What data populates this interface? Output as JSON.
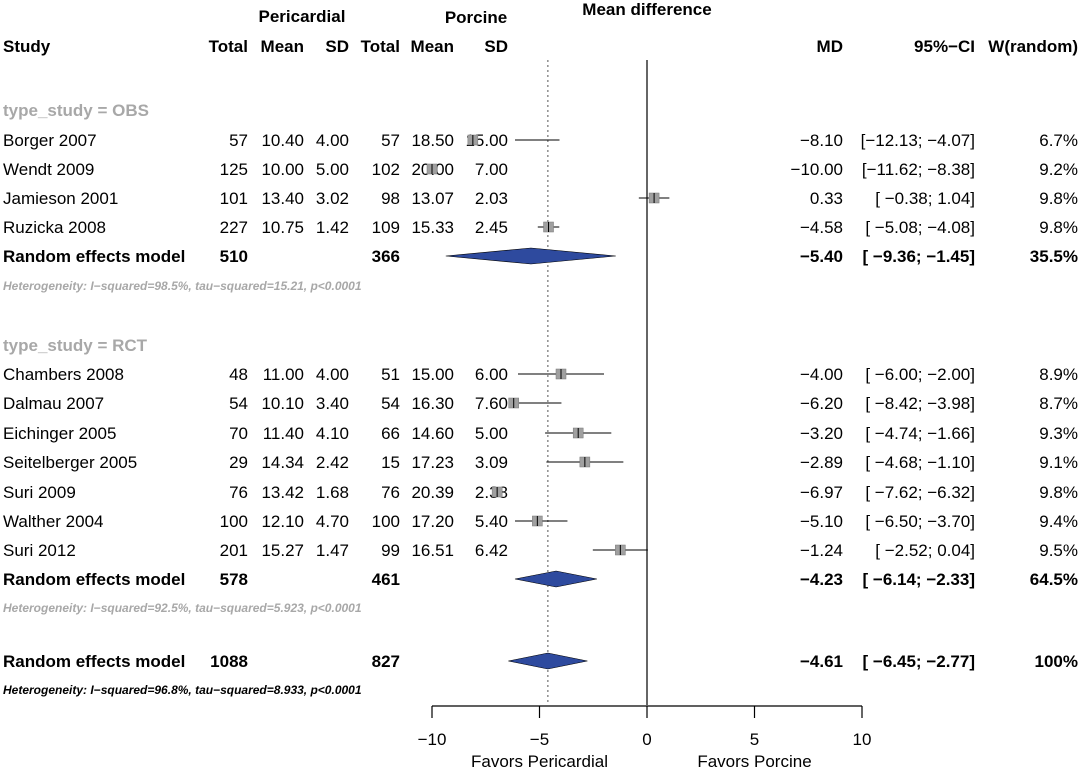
{
  "headers": {
    "group1": "Pericardial",
    "group2": "Porcine",
    "plot": "Mean difference",
    "study": "Study",
    "total1": "Total",
    "mean1": "Mean",
    "sd1": "SD",
    "total2": "Total",
    "mean2": "Mean",
    "sd2": "SD",
    "md": "MD",
    "ci": "95%−CI",
    "weight": "W(random)"
  },
  "subgroups": [
    {
      "label": "type_study = OBS",
      "studies": [
        {
          "name": "Borger 2007",
          "total1": "57",
          "mean1": "10.40",
          "sd1": "4.00",
          "total2": "57",
          "mean2": "18.50",
          "sd2": "15.00",
          "md_text": "−8.10",
          "ci_text": "[−12.13; −4.07]",
          "w_text": "6.7%",
          "md": -8.1,
          "lo": -12.13,
          "hi": -4.07
        },
        {
          "name": "Wendt 2009",
          "total1": "125",
          "mean1": "10.00",
          "sd1": "5.00",
          "total2": "102",
          "mean2": "20.00",
          "sd2": "7.00",
          "md_text": "−10.00",
          "ci_text": "[−11.62; −8.38]",
          "w_text": "9.2%",
          "md": -10.0,
          "lo": -11.62,
          "hi": -8.38
        },
        {
          "name": "Jamieson  2001",
          "total1": "101",
          "mean1": "13.40",
          "sd1": "3.02",
          "total2": "98",
          "mean2": "13.07",
          "sd2": "2.03",
          "md_text": "0.33",
          "ci_text": "[ −0.38;  1.04]",
          "w_text": "9.8%",
          "md": 0.33,
          "lo": -0.38,
          "hi": 1.04
        },
        {
          "name": "Ruzicka 2008",
          "total1": "227",
          "mean1": "10.75",
          "sd1": "1.42",
          "total2": "109",
          "mean2": "15.33",
          "sd2": "2.45",
          "md_text": "−4.58",
          "ci_text": "[ −5.08; −4.08]",
          "w_text": "9.8%",
          "md": -4.58,
          "lo": -5.08,
          "hi": -4.08
        }
      ],
      "pooled": {
        "label": "Random effects model",
        "total1": "510",
        "total2": "366",
        "md_text": "−5.40",
        "ci_text": "[ −9.36; −1.45]",
        "w_text": "35.5%",
        "md": -5.4,
        "lo": -9.36,
        "hi": -1.45
      },
      "heterogeneity": "Heterogeneity: I−squared=98.5%, tau−squared=15.21, p<0.0001"
    },
    {
      "label": "type_study = RCT",
      "studies": [
        {
          "name": "Chambers 2008",
          "total1": "48",
          "mean1": "11.00",
          "sd1": "4.00",
          "total2": "51",
          "mean2": "15.00",
          "sd2": "6.00",
          "md_text": "−4.00",
          "ci_text": "[ −6.00; −2.00]",
          "w_text": "8.9%",
          "md": -4.0,
          "lo": -6.0,
          "hi": -2.0
        },
        {
          "name": "Dalmau 2007",
          "total1": "54",
          "mean1": "10.10",
          "sd1": "3.40",
          "total2": "54",
          "mean2": "16.30",
          "sd2": "7.60",
          "md_text": "−6.20",
          "ci_text": "[ −8.42; −3.98]",
          "w_text": "8.7%",
          "md": -6.2,
          "lo": -8.42,
          "hi": -3.98
        },
        {
          "name": "Eichinger 2005",
          "total1": "70",
          "mean1": "11.40",
          "sd1": "4.10",
          "total2": "66",
          "mean2": "14.60",
          "sd2": "5.00",
          "md_text": "−3.20",
          "ci_text": "[ −4.74; −1.66]",
          "w_text": "9.3%",
          "md": -3.2,
          "lo": -4.74,
          "hi": -1.66
        },
        {
          "name": "Seitelberger 2005",
          "total1": "29",
          "mean1": "14.34",
          "sd1": "2.42",
          "total2": "15",
          "mean2": "17.23",
          "sd2": "3.09",
          "md_text": "−2.89",
          "ci_text": "[ −4.68; −1.10]",
          "w_text": "9.1%",
          "md": -2.89,
          "lo": -4.68,
          "hi": -1.1
        },
        {
          "name": "Suri 2009",
          "total1": "76",
          "mean1": "13.42",
          "sd1": "1.68",
          "total2": "76",
          "mean2": "20.39",
          "sd2": "2.38",
          "md_text": "−6.97",
          "ci_text": "[ −7.62; −6.32]",
          "w_text": "9.8%",
          "md": -6.97,
          "lo": -7.62,
          "hi": -6.32
        },
        {
          "name": "Walther 2004",
          "total1": "100",
          "mean1": "12.10",
          "sd1": "4.70",
          "total2": "100",
          "mean2": "17.20",
          "sd2": "5.40",
          "md_text": "−5.10",
          "ci_text": "[ −6.50; −3.70]",
          "w_text": "9.4%",
          "md": -5.1,
          "lo": -6.5,
          "hi": -3.7
        },
        {
          "name": "Suri 2012",
          "total1": "201",
          "mean1": "15.27",
          "sd1": "1.47",
          "total2": "99",
          "mean2": "16.51",
          "sd2": "6.42",
          "md_text": "−1.24",
          "ci_text": "[ −2.52;  0.04]",
          "w_text": "9.5%",
          "md": -1.24,
          "lo": -2.52,
          "hi": 0.04
        }
      ],
      "pooled": {
        "label": "Random effects model",
        "total1": "578",
        "total2": "461",
        "md_text": "−4.23",
        "ci_text": "[ −6.14; −2.33]",
        "w_text": "64.5%",
        "md": -4.23,
        "lo": -6.14,
        "hi": -2.33
      },
      "heterogeneity": "Heterogeneity: I−squared=92.5%, tau−squared=5.923, p<0.0001"
    }
  ],
  "overall": {
    "label": "Random effects model",
    "total1": "1088",
    "total2": "827",
    "md_text": "−4.61",
    "ci_text": "[ −6.45; −2.77]",
    "w_text": "100%",
    "md": -4.61,
    "lo": -6.45,
    "hi": -2.77,
    "heterogeneity": "Heterogeneity: I−squared=96.8%, tau−squared=8.933, p<0.0001"
  },
  "axis": {
    "ticks": [
      -10,
      -5,
      0,
      5,
      10
    ],
    "tick_labels": [
      "−10",
      "−5",
      "0",
      "5",
      "10"
    ],
    "xlim": [
      -10,
      10
    ],
    "left_label": "Favors Pericardial",
    "right_label": "Favors Porcine"
  },
  "colors": {
    "diamond": "#2e4a9e",
    "summary_text": "#a8a8a8",
    "square": "#a0a0a0"
  },
  "chart_data": {
    "type": "forest",
    "title": "Mean difference",
    "x": [
      -8.1,
      -10.0,
      0.33,
      -4.58,
      -4.0,
      -6.2,
      -3.2,
      -2.89,
      -6.97,
      -5.1,
      -1.24
    ],
    "categories": [
      "Borger 2007",
      "Wendt 2009",
      "Jamieson  2001",
      "Ruzicka 2008",
      "Chambers 2008",
      "Dalmau 2007",
      "Eichinger 2005",
      "Seitelberger 2005",
      "Suri 2009",
      "Walther 2004",
      "Suri 2012"
    ],
    "ci_lower": [
      -12.13,
      -11.62,
      -0.38,
      -5.08,
      -6.0,
      -8.42,
      -4.74,
      -4.68,
      -7.62,
      -6.5,
      -2.52
    ],
    "ci_upper": [
      -4.07,
      -8.38,
      1.04,
      -4.08,
      -2.0,
      -3.98,
      -1.66,
      -1.1,
      -6.32,
      -3.7,
      0.04
    ],
    "weights_percent": [
      6.7,
      9.2,
      9.8,
      9.8,
      8.9,
      8.7,
      9.3,
      9.1,
      9.8,
      9.4,
      9.5
    ],
    "pooled": {
      "OBS": -5.4,
      "RCT": -4.23,
      "overall": -4.61
    },
    "xlim": [
      -10,
      10
    ],
    "xticks": [
      -10,
      -5,
      0,
      5,
      10
    ],
    "grid": false
  }
}
